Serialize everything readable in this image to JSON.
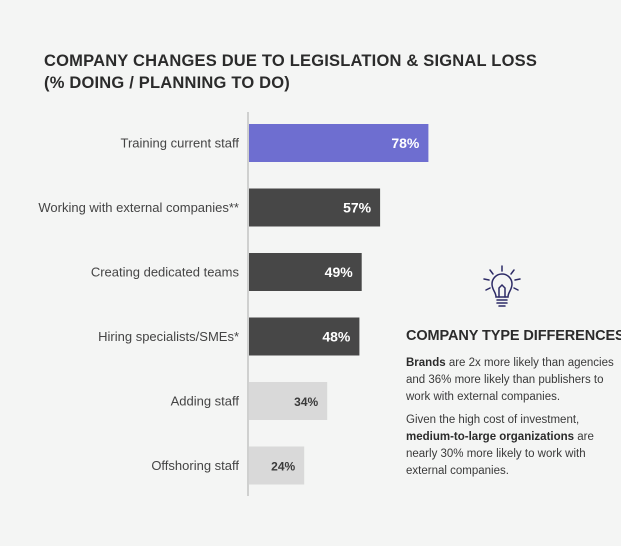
{
  "title": {
    "line1": "COMPANY CHANGES DUE TO LEGISLATION & SIGNAL LOSS",
    "line2": "(% DOING / PLANNING TO DO)"
  },
  "colors": {
    "accent": "#6e6ed0",
    "dark": "#474747",
    "light": "#d9d9d9",
    "axis": "#aaaaaa",
    "icon": "#2d2b66"
  },
  "chart_data": {
    "type": "bar",
    "orientation": "horizontal",
    "title": "COMPANY CHANGES DUE TO LEGISLATION & SIGNAL LOSS (% DOING / PLANNING TO DO)",
    "categories": [
      "Training current staff",
      "Working with external companies**",
      "Creating dedicated teams",
      "Hiring specialists/SMEs*",
      "Adding staff",
      "Offshoring staff"
    ],
    "values": [
      78,
      57,
      49,
      48,
      34,
      24
    ],
    "labels": [
      "78%",
      "57%",
      "49%",
      "48%",
      "34%",
      "24%"
    ],
    "bar_colors": [
      "accent",
      "dark",
      "dark",
      "dark",
      "light",
      "light"
    ],
    "unit": "%",
    "xlim": [
      0,
      100
    ],
    "xlabel": "",
    "ylabel": ""
  },
  "sidebar": {
    "icon": "lightbulb-icon",
    "heading": "COMPANY TYPE DIFFERENCES",
    "p1_bold": "Brands",
    "p1_rest": " are 2x more likely than agencies and 36% more likely than publishers to work with external companies.",
    "p2_start": "Given the high cost of investment, ",
    "p2_bold": "medium-to-large organizations",
    "p2_rest": " are nearly 30% more likely to work with external companies."
  }
}
